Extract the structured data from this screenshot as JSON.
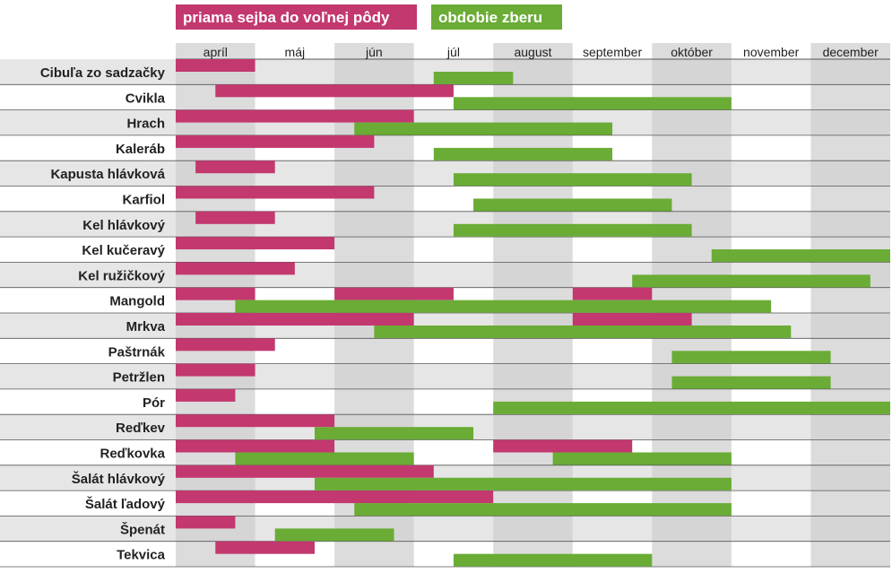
{
  "colors": {
    "sowing": "#c2386f",
    "harvest": "#6aac35",
    "row_alt": "#e6e6e6",
    "col_alt": "#cfcfcf",
    "line": "#555555",
    "label": "#222222"
  },
  "chart_data": {
    "type": "gantt",
    "legend": {
      "sowing": "priama sejba do voľnej pôdy",
      "harvest": "obdobie zberu"
    },
    "months": [
      "apríl",
      "máj",
      "jún",
      "júl",
      "august",
      "september",
      "október",
      "november",
      "december"
    ],
    "x_range_months": [
      4,
      13
    ],
    "grid": true,
    "crops": [
      {
        "name": "Cibuľa zo sadzačky",
        "sowing": [
          [
            4.0,
            5.0
          ]
        ],
        "harvest": [
          [
            7.25,
            8.25
          ]
        ]
      },
      {
        "name": "Cvikla",
        "sowing": [
          [
            4.5,
            7.5
          ]
        ],
        "harvest": [
          [
            7.5,
            11.0
          ]
        ]
      },
      {
        "name": "Hrach",
        "sowing": [
          [
            4.0,
            7.0
          ]
        ],
        "harvest": [
          [
            6.25,
            9.5
          ]
        ]
      },
      {
        "name": "Kaleráb",
        "sowing": [
          [
            4.0,
            6.5
          ]
        ],
        "harvest": [
          [
            7.25,
            9.5
          ]
        ]
      },
      {
        "name": "Kapusta hlávková",
        "sowing": [
          [
            4.25,
            5.25
          ]
        ],
        "harvest": [
          [
            7.5,
            10.5
          ]
        ]
      },
      {
        "name": "Karfiol",
        "sowing": [
          [
            4.0,
            6.5
          ]
        ],
        "harvest": [
          [
            7.75,
            10.25
          ]
        ]
      },
      {
        "name": "Kel hlávkový",
        "sowing": [
          [
            4.25,
            5.25
          ]
        ],
        "harvest": [
          [
            7.5,
            10.5
          ]
        ]
      },
      {
        "name": "Kel kučeravý",
        "sowing": [
          [
            4.0,
            6.0
          ]
        ],
        "harvest": [
          [
            10.75,
            13.0
          ]
        ]
      },
      {
        "name": "Kel ružičkový",
        "sowing": [
          [
            4.0,
            5.5
          ]
        ],
        "harvest": [
          [
            9.75,
            12.75
          ]
        ]
      },
      {
        "name": "Mangold",
        "sowing": [
          [
            4.0,
            5.0
          ],
          [
            6.0,
            7.5
          ],
          [
            9.0,
            10.0
          ]
        ],
        "harvest": [
          [
            4.75,
            11.5
          ]
        ]
      },
      {
        "name": "Mrkva",
        "sowing": [
          [
            4.0,
            7.0
          ],
          [
            9.0,
            10.5
          ]
        ],
        "harvest": [
          [
            6.5,
            11.75
          ]
        ]
      },
      {
        "name": "Paštrnák",
        "sowing": [
          [
            4.0,
            5.25
          ]
        ],
        "harvest": [
          [
            10.25,
            12.25
          ]
        ]
      },
      {
        "name": "Petržlen",
        "sowing": [
          [
            4.0,
            5.0
          ]
        ],
        "harvest": [
          [
            10.25,
            12.25
          ]
        ]
      },
      {
        "name": "Pór",
        "sowing": [
          [
            4.0,
            4.75
          ]
        ],
        "harvest": [
          [
            8.0,
            13.0
          ]
        ]
      },
      {
        "name": "Reďkev",
        "sowing": [
          [
            4.0,
            6.0
          ]
        ],
        "harvest": [
          [
            5.75,
            7.75
          ]
        ]
      },
      {
        "name": "Reďkovka",
        "sowing": [
          [
            4.0,
            6.0
          ],
          [
            8.0,
            9.75
          ]
        ],
        "harvest": [
          [
            4.75,
            7.0
          ],
          [
            8.75,
            11.0
          ]
        ]
      },
      {
        "name": "Šalát hlávkový",
        "sowing": [
          [
            4.0,
            7.25
          ]
        ],
        "harvest": [
          [
            5.75,
            11.0
          ]
        ]
      },
      {
        "name": "Šalát ľadový",
        "sowing": [
          [
            4.0,
            8.0
          ]
        ],
        "harvest": [
          [
            6.25,
            11.0
          ]
        ]
      },
      {
        "name": "Špenát",
        "sowing": [
          [
            4.0,
            4.75
          ]
        ],
        "harvest": [
          [
            5.25,
            6.75
          ]
        ]
      },
      {
        "name": "Tekvica",
        "sowing": [
          [
            4.5,
            5.75
          ]
        ],
        "harvest": [
          [
            7.5,
            10.0
          ]
        ]
      }
    ]
  }
}
